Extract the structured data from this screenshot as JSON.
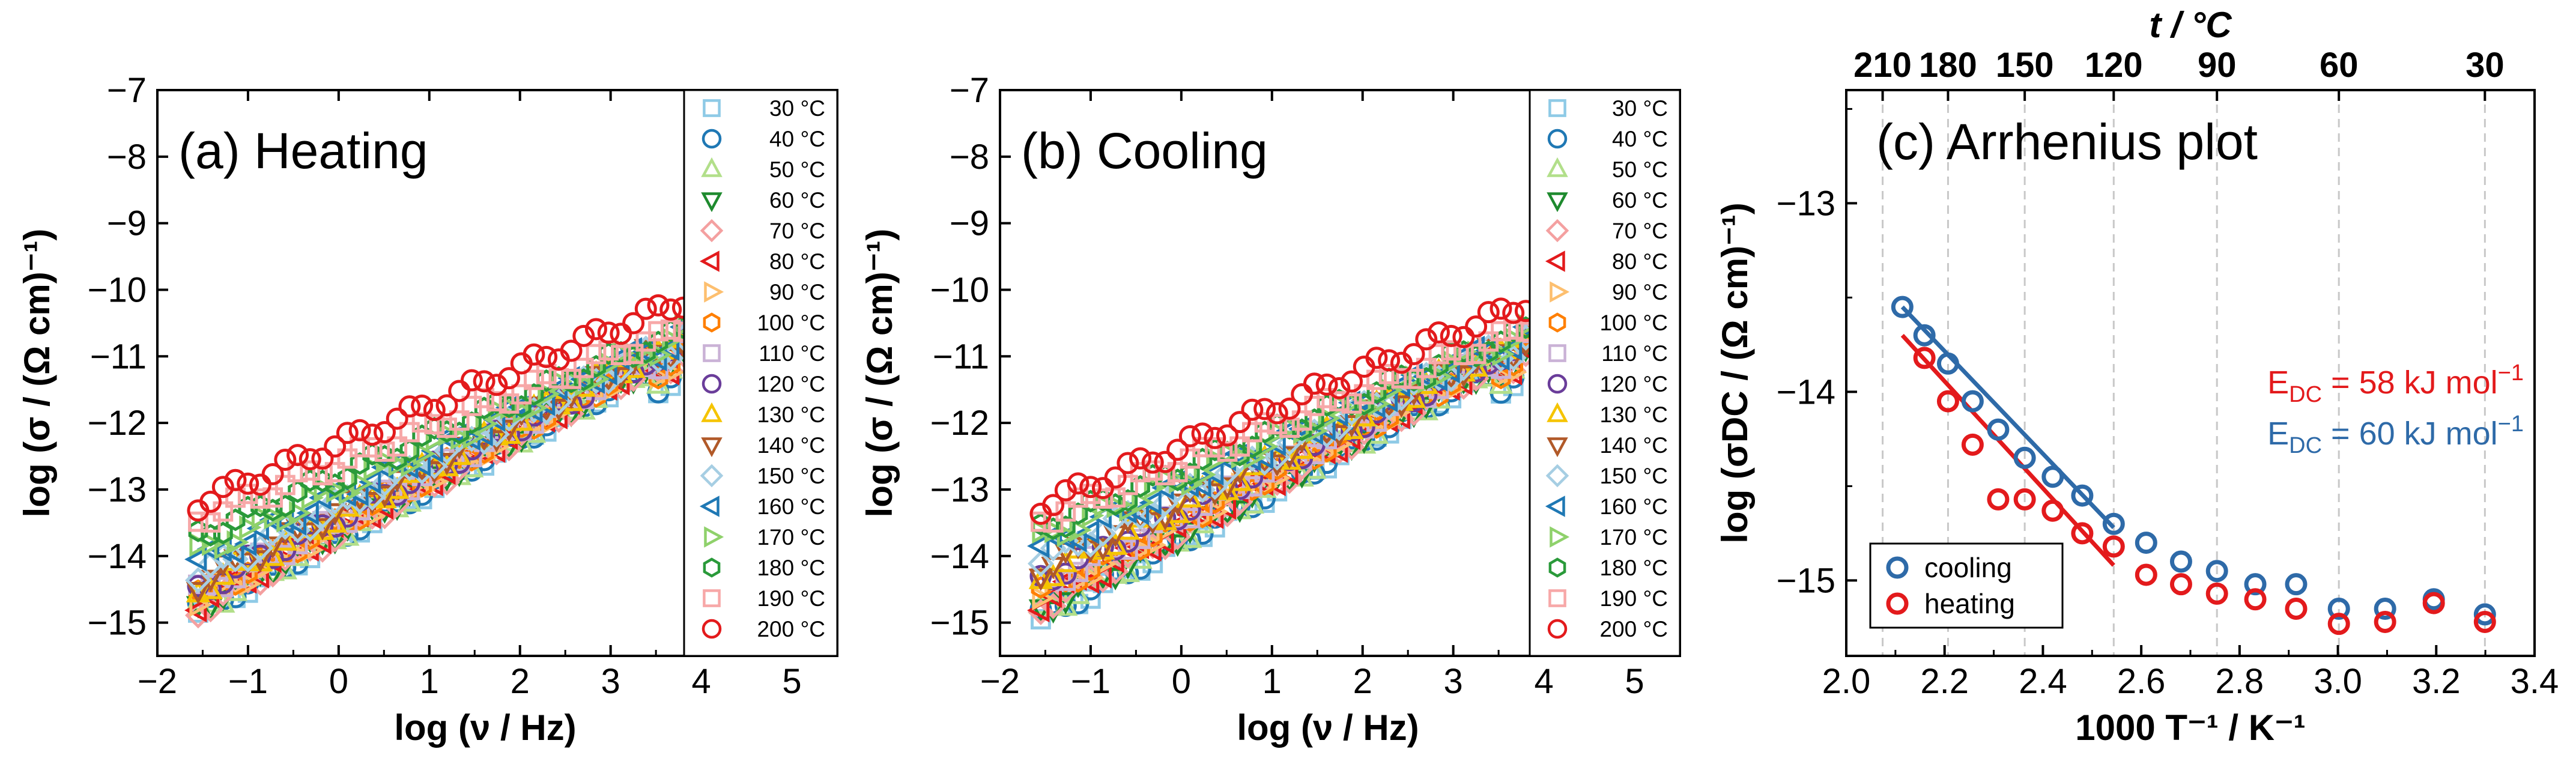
{
  "chart_data": [
    {
      "id": "a",
      "type": "scatter",
      "title": "(a) Heating",
      "xlabel": "log (ν / Hz)",
      "ylabel": "log (σ / (Ω cm)⁻¹)",
      "xlim": [
        -2,
        5.5
      ],
      "ylim": [
        -15.5,
        -7
      ],
      "xticks": [
        -2,
        -1,
        0,
        1,
        2,
        3,
        4,
        5
      ],
      "xtick_labels": [
        "−2",
        "−1",
        "0",
        "1",
        "2",
        "3",
        "4",
        "5"
      ],
      "yticks": [
        -15,
        -14,
        -13,
        -12,
        -11,
        -10,
        -9,
        -8,
        -7
      ],
      "ytick_labels": [
        "−15",
        "−14",
        "−13",
        "−12",
        "−11",
        "−10",
        "−9",
        "−8",
        "−7"
      ],
      "legend_location": "right",
      "x_range": [
        -1.55,
        3.8
      ],
      "series": [
        {
          "name": "30 °C",
          "marker": "square",
          "color": "#8ecae6",
          "y_start": -14.85,
          "y_end": -10.9
        },
        {
          "name": "40 °C",
          "marker": "circle",
          "color": "#1f78b4",
          "y_start": -14.8,
          "y_end": -10.9
        },
        {
          "name": "50 °C",
          "marker": "triangle-up",
          "color": "#b2df8a",
          "y_start": -14.8,
          "y_end": -10.9
        },
        {
          "name": "60 °C",
          "marker": "triangle-down",
          "color": "#1e8a2e",
          "y_start": -14.75,
          "y_end": -10.85
        },
        {
          "name": "70 °C",
          "marker": "diamond",
          "color": "#f4a0a0",
          "y_start": -14.8,
          "y_end": -10.85
        },
        {
          "name": "80 °C",
          "marker": "triangle-left",
          "color": "#e31a1c",
          "y_start": -14.7,
          "y_end": -10.8
        },
        {
          "name": "90 °C",
          "marker": "triangle-right",
          "color": "#fdbf6f",
          "y_start": -14.7,
          "y_end": -10.8
        },
        {
          "name": "100 °C",
          "marker": "hexagon",
          "color": "#ff7f00",
          "y_start": -14.6,
          "y_end": -10.8
        },
        {
          "name": "110 °C",
          "marker": "square",
          "color": "#cab2d6",
          "y_start": -14.55,
          "y_end": -10.75
        },
        {
          "name": "120 °C",
          "marker": "circle",
          "color": "#6a3d9a",
          "y_start": -14.5,
          "y_end": -10.75
        },
        {
          "name": "130 °C",
          "marker": "triangle-up",
          "color": "#f5c400",
          "y_start": -14.5,
          "y_end": -10.7
        },
        {
          "name": "140 °C",
          "marker": "triangle-down",
          "color": "#b15928",
          "y_start": -14.4,
          "y_end": -10.7
        },
        {
          "name": "150 °C",
          "marker": "diamond",
          "color": "#a6cee3",
          "y_start": -14.3,
          "y_end": -10.7
        },
        {
          "name": "160 °C",
          "marker": "triangle-left",
          "color": "#1f78b4",
          "y_start": -14.1,
          "y_end": -10.65
        },
        {
          "name": "170 °C",
          "marker": "triangle-right",
          "color": "#8fd16b",
          "y_start": -13.95,
          "y_end": -10.65
        },
        {
          "name": "180 °C",
          "marker": "hexagon",
          "color": "#2a9a3a",
          "y_start": -13.7,
          "y_end": -10.6
        },
        {
          "name": "190 °C",
          "marker": "square",
          "color": "#f7a8a8",
          "y_start": -13.45,
          "y_end": -10.55
        },
        {
          "name": "200 °C",
          "marker": "circle",
          "color": "#e31a1c",
          "y_start": -13.2,
          "y_end": -10.15
        }
      ]
    },
    {
      "id": "b",
      "type": "scatter",
      "title": "(b) Cooling",
      "xlabel": "log (ν / Hz)",
      "ylabel": "log (σ / (Ω cm)⁻¹)",
      "xlim": [
        -2,
        5.5
      ],
      "ylim": [
        -15.5,
        -7
      ],
      "xticks": [
        -2,
        -1,
        0,
        1,
        2,
        3,
        4,
        5
      ],
      "xtick_labels": [
        "−2",
        "−1",
        "0",
        "1",
        "2",
        "3",
        "4",
        "5"
      ],
      "yticks": [
        -15,
        -14,
        -13,
        -12,
        -11,
        -10,
        -9,
        -8,
        -7
      ],
      "ytick_labels": [
        "−15",
        "−14",
        "−13",
        "−12",
        "−11",
        "−10",
        "−9",
        "−8",
        "−7"
      ],
      "legend_location": "right",
      "x_range": [
        -1.55,
        3.8
      ],
      "series": [
        {
          "name": "30 °C",
          "marker": "square",
          "color": "#8ecae6",
          "y_start": -14.95,
          "y_end": -10.9
        },
        {
          "name": "40 °C",
          "marker": "circle",
          "color": "#1f78b4",
          "y_start": -14.9,
          "y_end": -10.9
        },
        {
          "name": "50 °C",
          "marker": "triangle-up",
          "color": "#b2df8a",
          "y_start": -14.85,
          "y_end": -10.9
        },
        {
          "name": "60 °C",
          "marker": "triangle-down",
          "color": "#1e8a2e",
          "y_start": -14.8,
          "y_end": -10.85
        },
        {
          "name": "70 °C",
          "marker": "diamond",
          "color": "#f4a0a0",
          "y_start": -14.75,
          "y_end": -10.85
        },
        {
          "name": "80 °C",
          "marker": "triangle-left",
          "color": "#e31a1c",
          "y_start": -14.7,
          "y_end": -10.8
        },
        {
          "name": "90 °C",
          "marker": "triangle-right",
          "color": "#fdbf6f",
          "y_start": -14.6,
          "y_end": -10.8
        },
        {
          "name": "100 °C",
          "marker": "hexagon",
          "color": "#ff7f00",
          "y_start": -14.55,
          "y_end": -10.8
        },
        {
          "name": "110 °C",
          "marker": "square",
          "color": "#cab2d6",
          "y_start": -14.45,
          "y_end": -10.75
        },
        {
          "name": "120 °C",
          "marker": "circle",
          "color": "#6a3d9a",
          "y_start": -14.35,
          "y_end": -10.75
        },
        {
          "name": "130 °C",
          "marker": "triangle-up",
          "color": "#f5c400",
          "y_start": -14.3,
          "y_end": -10.7
        },
        {
          "name": "140 °C",
          "marker": "triangle-down",
          "color": "#b15928",
          "y_start": -14.2,
          "y_end": -10.7
        },
        {
          "name": "150 °C",
          "marker": "diamond",
          "color": "#a6cee3",
          "y_start": -14.05,
          "y_end": -10.7
        },
        {
          "name": "160 °C",
          "marker": "triangle-left",
          "color": "#1f78b4",
          "y_start": -13.9,
          "y_end": -10.65
        },
        {
          "name": "170 °C",
          "marker": "triangle-right",
          "color": "#8fd16b",
          "y_start": -13.75,
          "y_end": -10.65
        },
        {
          "name": "180 °C",
          "marker": "hexagon",
          "color": "#2a9a3a",
          "y_start": -13.6,
          "y_end": -10.6
        },
        {
          "name": "190 °C",
          "marker": "square",
          "color": "#f7a8a8",
          "y_start": -13.45,
          "y_end": -10.55
        },
        {
          "name": "200 °C",
          "marker": "circle",
          "color": "#e31a1c",
          "y_start": -13.25,
          "y_end": -10.2
        }
      ]
    },
    {
      "id": "c",
      "type": "scatter",
      "title": "(c) Arrhenius plot",
      "xlabel": "1000 T⁻¹ / K⁻¹",
      "ylabel": "log (σDC / (Ω cm)⁻¹)",
      "top_xlabel": "t / °C",
      "xlim": [
        2.0,
        3.4
      ],
      "ylim": [
        -15.4,
        -12.4
      ],
      "xticks": [
        2.0,
        2.2,
        2.4,
        2.6,
        2.8,
        3.0,
        3.2,
        3.4
      ],
      "xtick_labels": [
        "2.0",
        "2.2",
        "2.4",
        "2.6",
        "2.8",
        "3.0",
        "3.2",
        "3.4"
      ],
      "yticks": [
        -15,
        -14,
        -13
      ],
      "ytick_labels": [
        "−15",
        "−14",
        "−13"
      ],
      "top_ticks": [
        {
          "label": "210",
          "x": 2.074
        },
        {
          "label": "180",
          "x": 2.207
        },
        {
          "label": "150",
          "x": 2.363
        },
        {
          "label": "120",
          "x": 2.544
        },
        {
          "label": "90",
          "x": 2.754
        },
        {
          "label": "60",
          "x": 3.002
        },
        {
          "label": "30",
          "x": 3.299
        }
      ],
      "series": [
        {
          "name": "cooling",
          "color": "#2e6aa8",
          "x": [
            2.114,
            2.159,
            2.207,
            2.257,
            2.309,
            2.363,
            2.42,
            2.48,
            2.544,
            2.61,
            2.681,
            2.754,
            2.832,
            2.915,
            3.002,
            3.096,
            3.195,
            3.299
          ],
          "y": [
            -13.55,
            -13.7,
            -13.85,
            -14.05,
            -14.2,
            -14.35,
            -14.45,
            -14.55,
            -14.7,
            -14.8,
            -14.9,
            -14.95,
            -15.02,
            -15.02,
            -15.15,
            -15.15,
            -15.1,
            -15.18
          ]
        },
        {
          "name": "heating",
          "color": "#e31a1c",
          "x": [
            2.159,
            2.207,
            2.257,
            2.309,
            2.363,
            2.42,
            2.48,
            2.544,
            2.61,
            2.681,
            2.754,
            2.832,
            2.915,
            3.002,
            3.096,
            3.195,
            3.299
          ],
          "y": [
            -13.82,
            -14.05,
            -14.28,
            -14.57,
            -14.57,
            -14.63,
            -14.75,
            -14.82,
            -14.97,
            -15.02,
            -15.07,
            -15.1,
            -15.15,
            -15.23,
            -15.22,
            -15.12,
            -15.22
          ]
        }
      ],
      "fit_lines": [
        {
          "name": "cooling fit",
          "color": "#2e6aa8",
          "x": [
            2.114,
            2.544
          ],
          "y": [
            -13.55,
            -14.72
          ]
        },
        {
          "name": "heating fit",
          "color": "#e31a1c",
          "x": [
            2.114,
            2.544
          ],
          "y": [
            -13.7,
            -14.92
          ]
        }
      ],
      "annotations": [
        {
          "prefix": "E",
          "sub": "DC",
          "text": " = 58 kJ mol",
          "sup": "−1",
          "color": "#e31a1c"
        },
        {
          "prefix": "E",
          "sub": "DC",
          "text": " = 60 kJ mol",
          "sup": "−1",
          "color": "#2e6aa8"
        }
      ],
      "legend_location": "bottom-left"
    }
  ]
}
